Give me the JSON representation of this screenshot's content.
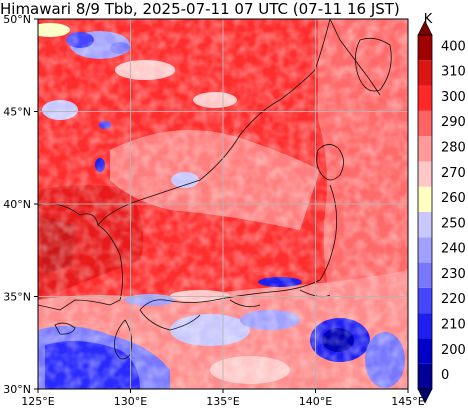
{
  "title": "Himawari 8/9 Tbb, 2025-07-11 07 UTC (07-11 16 JST)",
  "map": {
    "lon_ticks": [
      "125°E",
      "130°E",
      "135°E",
      "140°E",
      "145°E"
    ],
    "lat_ticks": [
      "30°N",
      "35°N",
      "40°N",
      "45°N",
      "50°N"
    ]
  },
  "colorbar": {
    "unit": "K",
    "levels": [
      {
        "label": "0",
        "color": "#000096"
      },
      {
        "label": "200",
        "color": "#0000c8"
      },
      {
        "label": "210",
        "color": "#1e1ef0"
      },
      {
        "label": "220",
        "color": "#4646ff"
      },
      {
        "label": "230",
        "color": "#7878ff"
      },
      {
        "label": "240",
        "color": "#a0a0ff"
      },
      {
        "label": "250",
        "color": "#c8c8ff"
      },
      {
        "label": "260",
        "color": "#ffffc0"
      },
      {
        "label": "270",
        "color": "#ffc8c8"
      },
      {
        "label": "280",
        "color": "#ff9a9a"
      },
      {
        "label": "290",
        "color": "#ff6464"
      },
      {
        "label": "300",
        "color": "#ff2828"
      },
      {
        "label": "310",
        "color": "#dc1414"
      },
      {
        "label": "400",
        "color": "#a00000"
      }
    ],
    "top_color": "#780000",
    "bottom_color": "#00006e"
  }
}
